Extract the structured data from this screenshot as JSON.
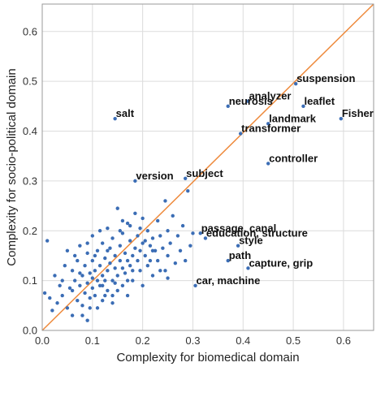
{
  "chart_data": {
    "type": "scatter",
    "title": "",
    "xlabel": "Complexity for biomedical domain",
    "ylabel": "Complexity for socio-political domain",
    "xlim": [
      0.0,
      0.66
    ],
    "ylim": [
      0.0,
      0.655
    ],
    "x_ticks": [
      0.0,
      0.1,
      0.2,
      0.3,
      0.4,
      0.5,
      0.6
    ],
    "x_tick_labels": [
      "0.0",
      "0.1",
      "0.2",
      "0.3",
      "0.4",
      "0.5",
      "0.6"
    ],
    "y_ticks": [
      0.0,
      0.1,
      0.2,
      0.3,
      0.4,
      0.5,
      0.6
    ],
    "y_tick_labels": [
      "0.0",
      "0.1",
      "0.2",
      "0.3",
      "0.4",
      "0.5",
      "0.6"
    ],
    "grid": true,
    "diagonal_line": {
      "from": [
        0.0,
        0.0
      ],
      "to": [
        0.66,
        0.655
      ],
      "color": "#ee8a3c"
    },
    "marker_color": "#3b6db5",
    "labeled_points": [
      {
        "label": "salt",
        "x": 0.145,
        "y": 0.425
      },
      {
        "label": "version",
        "x": 0.185,
        "y": 0.3
      },
      {
        "label": "subject",
        "x": 0.285,
        "y": 0.305
      },
      {
        "label": "neurosis",
        "x": 0.37,
        "y": 0.45
      },
      {
        "label": "analyzer",
        "x": 0.41,
        "y": 0.46
      },
      {
        "label": "suspension",
        "x": 0.505,
        "y": 0.495
      },
      {
        "label": "leaflet",
        "x": 0.52,
        "y": 0.45
      },
      {
        "label": "landmark",
        "x": 0.45,
        "y": 0.415
      },
      {
        "label": "transformer",
        "x": 0.395,
        "y": 0.395
      },
      {
        "label": "Fisher",
        "x": 0.595,
        "y": 0.425
      },
      {
        "label": "controller",
        "x": 0.45,
        "y": 0.335
      },
      {
        "label": "passage, canal",
        "x": 0.315,
        "y": 0.195
      },
      {
        "label": "education, structure",
        "x": 0.325,
        "y": 0.185
      },
      {
        "label": "style",
        "x": 0.39,
        "y": 0.17
      },
      {
        "label": "path",
        "x": 0.37,
        "y": 0.14
      },
      {
        "label": "capture, grip",
        "x": 0.41,
        "y": 0.125
      },
      {
        "label": "car, machine",
        "x": 0.305,
        "y": 0.09
      }
    ],
    "points": [
      [
        0.005,
        0.075
      ],
      [
        0.01,
        0.18
      ],
      [
        0.015,
        0.065
      ],
      [
        0.02,
        0.04
      ],
      [
        0.025,
        0.11
      ],
      [
        0.03,
        0.055
      ],
      [
        0.035,
        0.09
      ],
      [
        0.04,
        0.07
      ],
      [
        0.045,
        0.13
      ],
      [
        0.05,
        0.045
      ],
      [
        0.05,
        0.16
      ],
      [
        0.055,
        0.085
      ],
      [
        0.06,
        0.12
      ],
      [
        0.06,
        0.03
      ],
      [
        0.065,
        0.1
      ],
      [
        0.07,
        0.06
      ],
      [
        0.07,
        0.14
      ],
      [
        0.075,
        0.09
      ],
      [
        0.075,
        0.17
      ],
      [
        0.08,
        0.05
      ],
      [
        0.08,
        0.11
      ],
      [
        0.085,
        0.13
      ],
      [
        0.085,
        0.075
      ],
      [
        0.09,
        0.095
      ],
      [
        0.09,
        0.155
      ],
      [
        0.09,
        0.02
      ],
      [
        0.095,
        0.115
      ],
      [
        0.095,
        0.065
      ],
      [
        0.1,
        0.14
      ],
      [
        0.1,
        0.085
      ],
      [
        0.1,
        0.105
      ],
      [
        0.1,
        0.19
      ],
      [
        0.105,
        0.12
      ],
      [
        0.105,
        0.07
      ],
      [
        0.11,
        0.1
      ],
      [
        0.11,
        0.16
      ],
      [
        0.11,
        0.045
      ],
      [
        0.115,
        0.13
      ],
      [
        0.115,
        0.09
      ],
      [
        0.12,
        0.11
      ],
      [
        0.12,
        0.175
      ],
      [
        0.12,
        0.06
      ],
      [
        0.125,
        0.145
      ],
      [
        0.125,
        0.1
      ],
      [
        0.13,
        0.12
      ],
      [
        0.13,
        0.205
      ],
      [
        0.13,
        0.08
      ],
      [
        0.135,
        0.135
      ],
      [
        0.135,
        0.165
      ],
      [
        0.14,
        0.1
      ],
      [
        0.14,
        0.185
      ],
      [
        0.14,
        0.055
      ],
      [
        0.145,
        0.125
      ],
      [
        0.145,
        0.15
      ],
      [
        0.15,
        0.11
      ],
      [
        0.15,
        0.245
      ],
      [
        0.15,
        0.08
      ],
      [
        0.155,
        0.14
      ],
      [
        0.155,
        0.17
      ],
      [
        0.16,
        0.125
      ],
      [
        0.16,
        0.195
      ],
      [
        0.16,
        0.09
      ],
      [
        0.165,
        0.155
      ],
      [
        0.165,
        0.115
      ],
      [
        0.17,
        0.14
      ],
      [
        0.17,
        0.215
      ],
      [
        0.17,
        0.07
      ],
      [
        0.175,
        0.13
      ],
      [
        0.175,
        0.18
      ],
      [
        0.18,
        0.15
      ],
      [
        0.18,
        0.1
      ],
      [
        0.185,
        0.165
      ],
      [
        0.185,
        0.235
      ],
      [
        0.19,
        0.14
      ],
      [
        0.19,
        0.19
      ],
      [
        0.195,
        0.12
      ],
      [
        0.195,
        0.16
      ],
      [
        0.2,
        0.175
      ],
      [
        0.2,
        0.225
      ],
      [
        0.2,
        0.09
      ],
      [
        0.205,
        0.15
      ],
      [
        0.21,
        0.2
      ],
      [
        0.21,
        0.13
      ],
      [
        0.215,
        0.17
      ],
      [
        0.22,
        0.185
      ],
      [
        0.22,
        0.11
      ],
      [
        0.225,
        0.16
      ],
      [
        0.23,
        0.22
      ],
      [
        0.23,
        0.14
      ],
      [
        0.235,
        0.19
      ],
      [
        0.24,
        0.165
      ],
      [
        0.245,
        0.26
      ],
      [
        0.245,
        0.12
      ],
      [
        0.25,
        0.2
      ],
      [
        0.25,
        0.15
      ],
      [
        0.255,
        0.175
      ],
      [
        0.26,
        0.23
      ],
      [
        0.265,
        0.135
      ],
      [
        0.27,
        0.19
      ],
      [
        0.275,
        0.16
      ],
      [
        0.28,
        0.21
      ],
      [
        0.285,
        0.14
      ],
      [
        0.29,
        0.28
      ],
      [
        0.295,
        0.17
      ],
      [
        0.3,
        0.195
      ],
      [
        0.09,
        0.175
      ],
      [
        0.13,
        0.16
      ],
      [
        0.16,
        0.22
      ],
      [
        0.06,
        0.08
      ],
      [
        0.08,
        0.03
      ],
      [
        0.115,
        0.2
      ],
      [
        0.145,
        0.095
      ],
      [
        0.175,
        0.21
      ],
      [
        0.205,
        0.18
      ],
      [
        0.215,
        0.14
      ],
      [
        0.235,
        0.12
      ],
      [
        0.25,
        0.105
      ],
      [
        0.18,
        0.12
      ],
      [
        0.195,
        0.205
      ],
      [
        0.12,
        0.09
      ],
      [
        0.105,
        0.15
      ],
      [
        0.095,
        0.045
      ],
      [
        0.075,
        0.115
      ],
      [
        0.065,
        0.15
      ],
      [
        0.04,
        0.1
      ],
      [
        0.14,
        0.07
      ],
      [
        0.17,
        0.1
      ],
      [
        0.22,
        0.16
      ],
      [
        0.125,
        0.07
      ],
      [
        0.155,
        0.2
      ]
    ]
  }
}
